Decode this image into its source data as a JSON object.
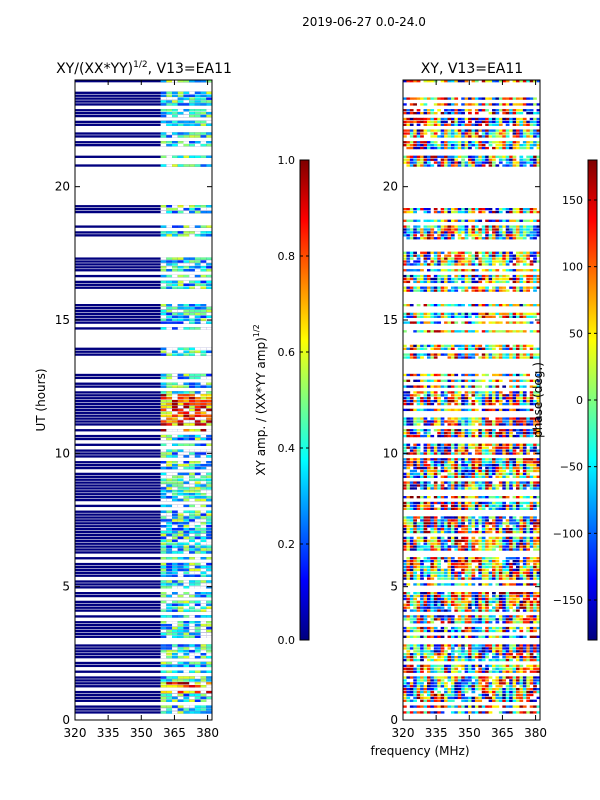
{
  "figure": {
    "suptitle": "2019-06-27 0.0-24.0",
    "shared_xlabel": "frequency (MHz)"
  },
  "chart_data": [
    {
      "type": "heatmap",
      "title_main": "XY/(XX*YY)",
      "title_exp": "1/2",
      "title_suffix": ", V13=EA11",
      "xlabel": "",
      "ylabel": "UT (hours)",
      "xlim": [
        320,
        382
      ],
      "ylim": [
        0,
        24
      ],
      "x_ticks": [
        320,
        335,
        350,
        365,
        380
      ],
      "y_ticks": [
        0,
        5,
        10,
        15,
        20
      ],
      "colormap": "jet",
      "colorbar": {
        "label_main": "XY amp. / (XX*YY amp)",
        "label_exp": "1/2",
        "range": [
          0.0,
          1.0
        ],
        "ticks": [
          0.0,
          0.2,
          0.4,
          0.6,
          0.8,
          1.0
        ],
        "tick_labels": [
          "0.0",
          "0.2",
          "0.4",
          "0.6",
          "0.8",
          "1.0"
        ]
      },
      "rfi_band_mhz": [
        359,
        381
      ],
      "data_gaps_hours": [
        [
          0.05,
          0.3
        ],
        [
          2.9,
          3.05
        ],
        [
          13.0,
          13.6
        ],
        [
          14.1,
          14.6
        ],
        [
          15.7,
          16.1
        ],
        [
          17.6,
          18.1
        ],
        [
          18.8,
          19.0
        ],
        [
          19.4,
          20.8
        ],
        [
          21.2,
          21.4
        ],
        [
          23.6,
          24.0
        ]
      ],
      "notes": "mostly ~0 (dark blue); elevated amplitude in 359-381 MHz band; peaks near 1.1-1.4 h and 10.9-12.2 h"
    },
    {
      "type": "heatmap",
      "title": "XY, V13=EA11",
      "xlabel": "",
      "ylabel": "",
      "xlim": [
        320,
        382
      ],
      "ylim": [
        0,
        24
      ],
      "x_ticks": [
        320,
        335,
        350,
        365,
        380
      ],
      "y_ticks": [
        0,
        5,
        10,
        15,
        20
      ],
      "colormap": "jet",
      "colorbar": {
        "label": "phase (deg.)",
        "range": [
          -180,
          180
        ],
        "ticks": [
          -150,
          -100,
          -50,
          0,
          50,
          100,
          150
        ],
        "tick_labels": [
          "−150",
          "−100",
          "−50",
          "0",
          "50",
          "100",
          "150"
        ]
      },
      "data_gaps_hours": [
        [
          0.05,
          0.3
        ],
        [
          2.9,
          3.05
        ],
        [
          13.0,
          13.6
        ],
        [
          14.1,
          14.6
        ],
        [
          15.7,
          16.1
        ],
        [
          17.6,
          18.1
        ],
        [
          18.8,
          19.0
        ],
        [
          19.4,
          20.8
        ],
        [
          21.2,
          21.4
        ],
        [
          23.6,
          24.0
        ]
      ],
      "notes": "noisy XY phase, full -180..180 range"
    }
  ],
  "colors": {
    "jet": [
      "#00007f",
      "#0000ff",
      "#007fff",
      "#00ffff",
      "#7fff7f",
      "#ffff00",
      "#ff7f00",
      "#ff0000",
      "#7f0000"
    ]
  }
}
